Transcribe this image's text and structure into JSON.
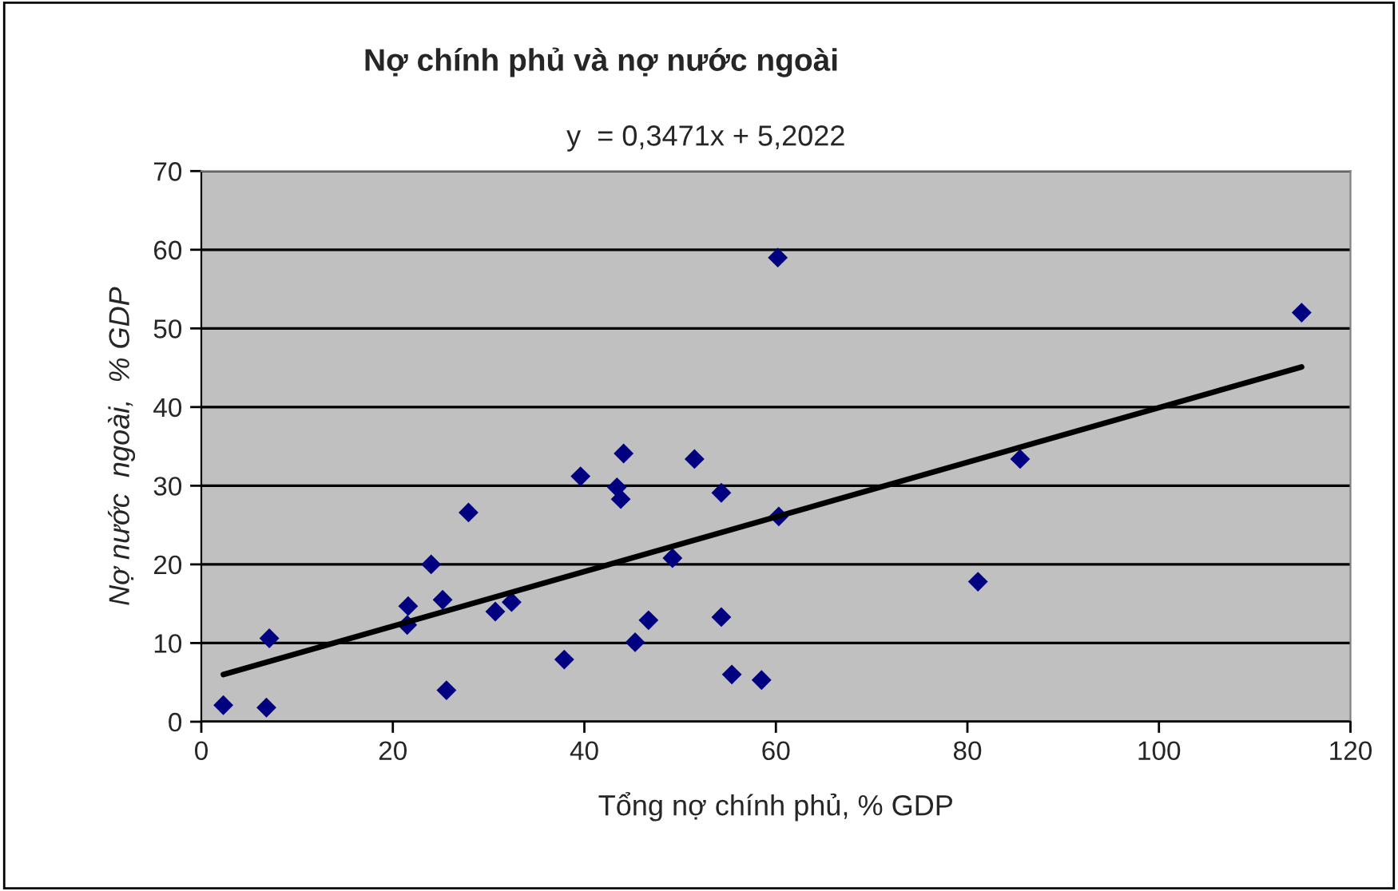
{
  "chart_data": {
    "type": "scatter",
    "title": "Nợ chính phủ và nợ nước ngoài",
    "annotations": [
      "y  = 0,3471x + 5,2022"
    ],
    "xlabel": "Tổng nợ chính phủ, % GDP",
    "ylabel": "Nợ nước  ngoài,  % GDP",
    "xlim": [
      0,
      120
    ],
    "xticks": [
      0,
      20,
      40,
      60,
      80,
      100,
      120
    ],
    "ylim": [
      0,
      70
    ],
    "yticks": [
      0,
      10,
      20,
      30,
      40,
      50,
      60,
      70
    ],
    "grid": "y",
    "legend": false,
    "series": [
      {
        "color": "#000080",
        "marker": "diamond",
        "x": [
          2.3,
          6.8,
          7.1,
          21.6,
          21.5,
          24.0,
          25.2,
          25.6,
          27.9,
          30.7,
          32.4,
          37.9,
          39.6,
          43.4,
          43.8,
          44.1,
          45.3,
          46.7,
          49.2,
          51.5,
          54.3,
          54.3,
          55.4,
          58.5,
          60.3,
          60.2,
          114.9,
          85.5,
          81.1
        ],
        "values": [
          2.1,
          1.8,
          10.6,
          14.7,
          12.3,
          20.0,
          15.5,
          4.0,
          26.6,
          14.0,
          15.2,
          7.9,
          31.2,
          29.8,
          28.3,
          34.1,
          10.1,
          12.9,
          20.8,
          33.4,
          29.1,
          13.3,
          6.0,
          5.3,
          26.1,
          59.0,
          52.0,
          33.4,
          17.8
        ]
      },
      {
        "type": "line",
        "color": "#000000",
        "x": [
          2.3,
          114.9
        ],
        "values": [
          6.0,
          45.1
        ]
      }
    ]
  }
}
